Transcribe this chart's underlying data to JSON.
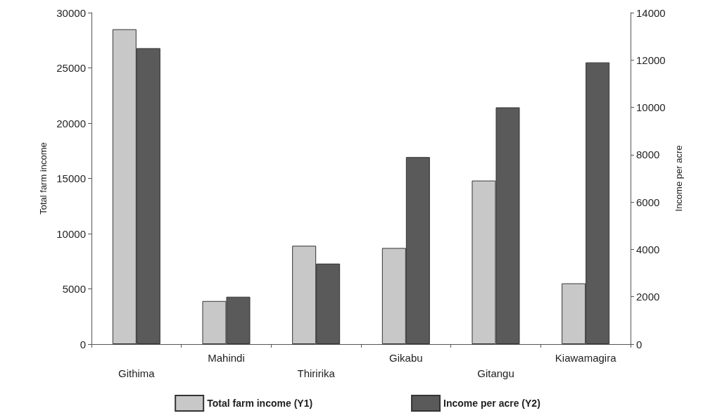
{
  "chart_data": {
    "type": "bar",
    "ylabel": "Total farm income",
    "y2label": "Income per acre",
    "categories": [
      "Githima",
      "Mahindi",
      "Thiririka",
      "Gikabu",
      "Gitangu",
      "Kiawamagira"
    ],
    "series": [
      {
        "name": "Total farm income (Y1)",
        "color": "#c8c8c8",
        "values": [
          28500,
          3900,
          8900,
          8700,
          14800,
          5500
        ]
      },
      {
        "name": "Income per acre (Y2)",
        "color": "#5a5a5a",
        "axis": "y2",
        "values": [
          12500,
          2000,
          3400,
          7900,
          10000,
          11900
        ]
      }
    ],
    "ylim": [
      0,
      30000
    ],
    "yticks": [
      0,
      5000,
      10000,
      15000,
      20000,
      25000,
      30000
    ],
    "y2lim": [
      0,
      14000
    ],
    "y2ticks": [
      0,
      2000,
      4000,
      6000,
      8000,
      10000,
      12000,
      14000
    ],
    "grid": false,
    "legend": "bottom"
  }
}
